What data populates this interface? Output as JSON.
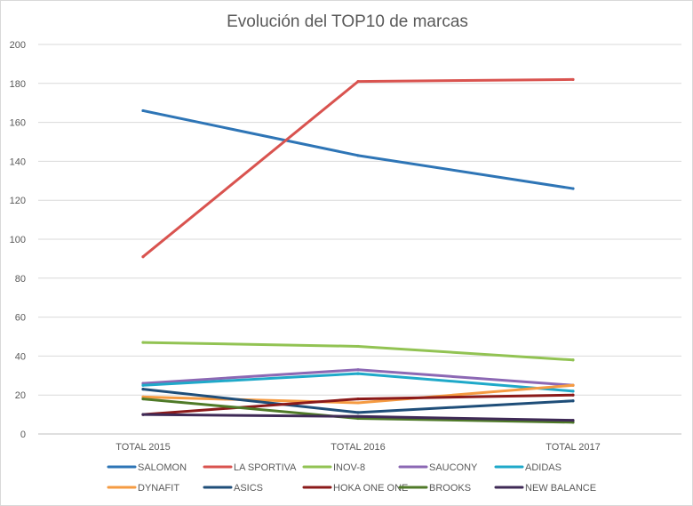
{
  "chart_data": {
    "type": "line",
    "title": "Evolución del TOP10 de marcas",
    "xlabel": "",
    "ylabel": "",
    "categories": [
      "TOTAL 2015",
      "TOTAL 2016",
      "TOTAL 2017"
    ],
    "ylim": [
      0,
      200
    ],
    "yticks": [
      0,
      20,
      40,
      60,
      80,
      100,
      120,
      140,
      160,
      180,
      200
    ],
    "grid": true,
    "legend_position": "bottom",
    "series": [
      {
        "name": "SALOMON",
        "color": "#2e75b6",
        "values": [
          166,
          143,
          126
        ]
      },
      {
        "name": "LA SPORTIVA",
        "color": "#d9534f",
        "values": [
          91,
          181,
          182
        ]
      },
      {
        "name": "INOV-8",
        "color": "#92c353",
        "values": [
          47,
          45,
          38
        ]
      },
      {
        "name": "SAUCONY",
        "color": "#8c68b4",
        "values": [
          26,
          33,
          25
        ]
      },
      {
        "name": "ADIDAS",
        "color": "#1fa9c9",
        "values": [
          25,
          31,
          22
        ]
      },
      {
        "name": "DYNAFIT",
        "color": "#f59b42",
        "values": [
          19,
          16,
          25
        ]
      },
      {
        "name": "ASICS",
        "color": "#1f4e79",
        "values": [
          23,
          11,
          17
        ]
      },
      {
        "name": "HOKA ONE ONE",
        "color": "#8b1a1a",
        "values": [
          10,
          18,
          20
        ]
      },
      {
        "name": "BROOKS",
        "color": "#4f7a28",
        "values": [
          18,
          8,
          6
        ]
      },
      {
        "name": "NEW BALANCE",
        "color": "#3f2a56",
        "values": [
          10,
          9,
          7
        ]
      }
    ]
  }
}
